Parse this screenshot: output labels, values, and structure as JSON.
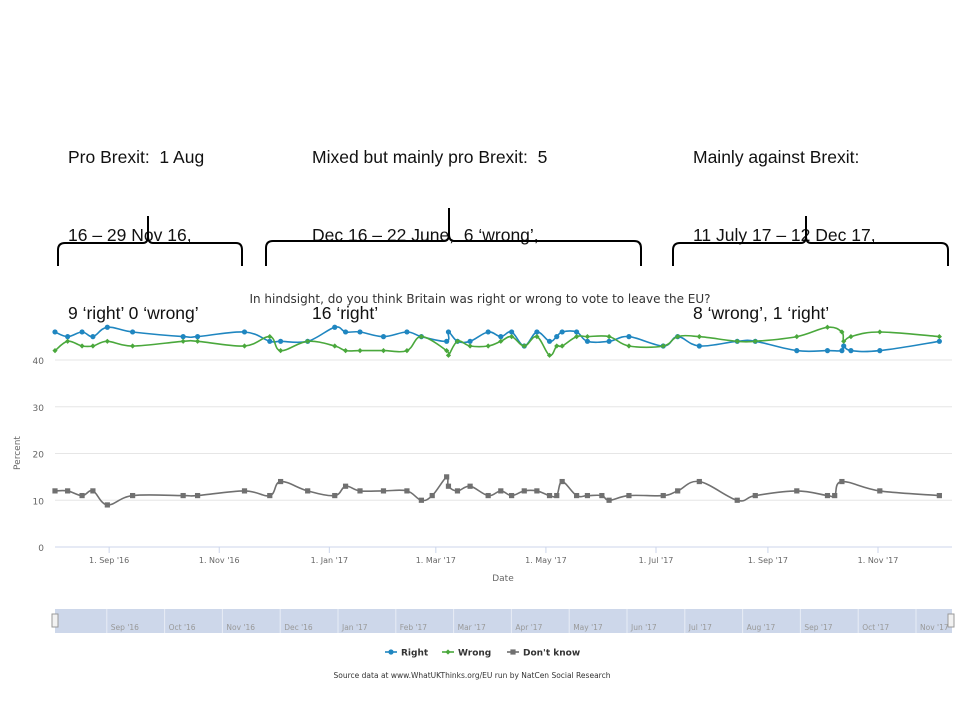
{
  "annotations": [
    {
      "lines": [
        "Pro Brexit:  1 Aug",
        "16 – 29 Nov 16,",
        "9 ‘right’ 0 ‘wrong’"
      ]
    },
    {
      "lines": [
        "Mixed but mainly pro Brexit:  5",
        "Dec 16 – 22 June,  6 ‘wrong’,",
        "16 ‘right’"
      ]
    },
    {
      "lines": [
        "Mainly against Brexit:",
        "11 July 17 – 12 Dec 17,",
        "8 ‘wrong’, 1 ‘right’"
      ]
    }
  ],
  "chart_data": {
    "type": "line",
    "title": "In hindsight, do you think Britain was right or wrong to vote to leave the EU?",
    "xlabel": "Date",
    "ylabel": "Percent",
    "ylim": [
      0,
      50
    ],
    "yticks": [
      0,
      10,
      20,
      30,
      40
    ],
    "xrange_days": [
      0,
      497
    ],
    "x_unit": "days since 2 Aug 2016",
    "xticks": [
      {
        "day": 30,
        "label": "1. Sep '16"
      },
      {
        "day": 91,
        "label": "1. Nov '16"
      },
      {
        "day": 152,
        "label": "1. Jan '17"
      },
      {
        "day": 211,
        "label": "1. Mar '17"
      },
      {
        "day": 272,
        "label": "1. May '17"
      },
      {
        "day": 333,
        "label": "1. Jul '17"
      },
      {
        "day": 395,
        "label": "1. Sep '17"
      },
      {
        "day": 456,
        "label": "1. Nov '17"
      }
    ],
    "navigator_labels": [
      "Sep '16",
      "Oct '16",
      "Nov '16",
      "Dec '16",
      "Jan '17",
      "Feb '17",
      "Mar '17",
      "Apr '17",
      "May '17",
      "Jun '17",
      "Jul '17",
      "Aug '17",
      "Sep '17",
      "Oct '17",
      "Nov '17"
    ],
    "grid": true,
    "legend": "bottom",
    "source": "Source data at www.WhatUKThinks.org/EU run by NatCen Social Research",
    "series": [
      {
        "name": "Right",
        "color": "#1f86c0",
        "marker": "circle",
        "x": [
          0,
          7,
          15,
          21,
          29,
          43,
          71,
          79,
          105,
          119,
          125,
          140,
          155,
          161,
          169,
          182,
          195,
          203,
          217,
          218,
          223,
          230,
          240,
          247,
          253,
          260,
          267,
          274,
          278,
          281,
          289,
          295,
          307,
          318,
          337,
          345,
          357,
          378,
          388,
          411,
          428,
          436,
          437,
          441,
          457,
          490
        ],
        "values": [
          46,
          45,
          46,
          45,
          47,
          46,
          45,
          45,
          46,
          44,
          44,
          44,
          47,
          46,
          46,
          45,
          46,
          45,
          44,
          46,
          44,
          44,
          46,
          45,
          46,
          43,
          46,
          44,
          45,
          46,
          46,
          44,
          44,
          45,
          43,
          45,
          43,
          44,
          44,
          42,
          42,
          42,
          43,
          42,
          42,
          44
        ]
      },
      {
        "name": "Wrong",
        "color": "#4aa83c",
        "marker": "diamond",
        "x": [
          0,
          7,
          15,
          21,
          29,
          43,
          71,
          79,
          105,
          119,
          125,
          140,
          155,
          161,
          169,
          182,
          195,
          203,
          217,
          218,
          223,
          230,
          240,
          247,
          253,
          260,
          267,
          274,
          278,
          281,
          289,
          295,
          307,
          318,
          337,
          345,
          357,
          378,
          388,
          411,
          428,
          436,
          437,
          441,
          457,
          490
        ],
        "values": [
          42,
          44,
          43,
          43,
          44,
          43,
          44,
          44,
          43,
          45,
          42,
          44,
          43,
          42,
          42,
          42,
          42,
          45,
          42,
          41,
          44,
          43,
          43,
          44,
          45,
          43,
          45,
          41,
          43,
          43,
          45,
          45,
          45,
          43,
          43,
          45,
          45,
          44,
          44,
          45,
          47,
          46,
          44,
          45,
          46,
          45
        ]
      },
      {
        "name": "Don't know",
        "color": "#707070",
        "marker": "square",
        "x": [
          0,
          7,
          15,
          21,
          29,
          43,
          71,
          79,
          105,
          119,
          125,
          140,
          155,
          161,
          169,
          182,
          195,
          203,
          209,
          217,
          218,
          223,
          230,
          240,
          247,
          253,
          260,
          267,
          274,
          278,
          281,
          289,
          295,
          303,
          307,
          318,
          337,
          345,
          357,
          378,
          388,
          411,
          428,
          432,
          436,
          457,
          490
        ],
        "values": [
          12,
          12,
          11,
          12,
          9,
          11,
          11,
          11,
          12,
          11,
          14,
          12,
          11,
          13,
          12,
          12,
          12,
          10,
          11,
          15,
          13,
          12,
          13,
          11,
          12,
          11,
          12,
          12,
          11,
          11,
          14,
          11,
          11,
          11,
          10,
          11,
          11,
          12,
          14,
          10,
          11,
          12,
          11,
          11,
          14,
          12,
          11
        ]
      }
    ]
  }
}
